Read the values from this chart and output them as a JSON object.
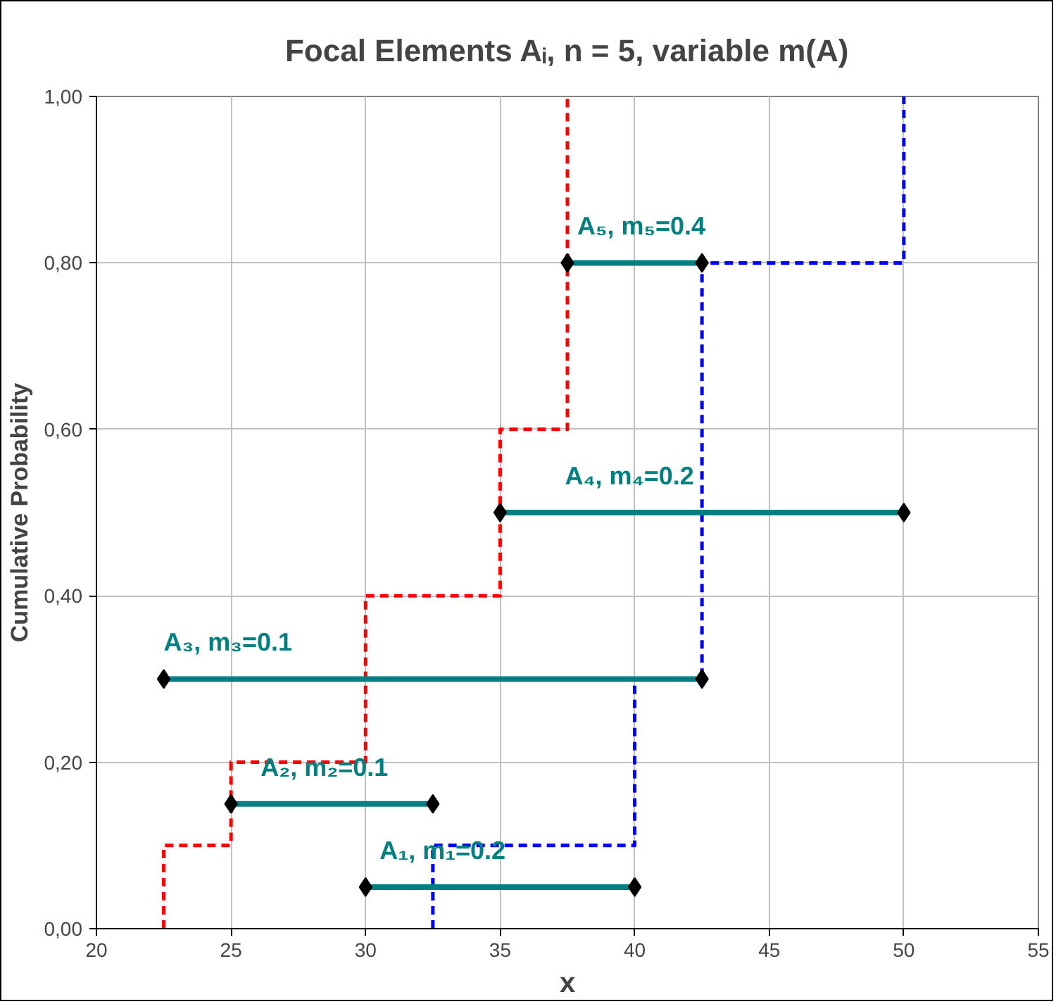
{
  "chart_data": {
    "type": "line",
    "title": "Focal Elements Aᵢ, n = 5, variable m(A)",
    "xlabel": "x",
    "ylabel": "Cumulative Probability",
    "xlim": [
      20,
      55
    ],
    "xticks": [
      20,
      25,
      30,
      35,
      40,
      45,
      50,
      55
    ],
    "ylim": [
      0,
      1
    ],
    "yticks": [
      {
        "value": 0,
        "label": "0,00"
      },
      {
        "value": 0.2,
        "label": "0,20"
      },
      {
        "value": 0.4,
        "label": "0,40"
      },
      {
        "value": 0.6,
        "label": "0,60"
      },
      {
        "value": 0.8,
        "label": "0,80"
      },
      {
        "value": 1,
        "label": "1,00"
      }
    ],
    "grid": true,
    "series": [
      {
        "x": [
          30,
          40
        ],
        "values": [
          0.05,
          0.05
        ],
        "color": "#008080",
        "marker": "diamond",
        "line_style": "solid"
      },
      {
        "x": [
          25,
          32.5
        ],
        "values": [
          0.15,
          0.15
        ],
        "color": "#008080",
        "marker": "diamond",
        "line_style": "solid"
      },
      {
        "x": [
          22.5,
          42.5
        ],
        "values": [
          0.3,
          0.3
        ],
        "color": "#008080",
        "marker": "diamond",
        "line_style": "solid"
      },
      {
        "x": [
          35,
          50
        ],
        "values": [
          0.5,
          0.5
        ],
        "color": "#008080",
        "marker": "diamond",
        "line_style": "solid"
      },
      {
        "x": [
          37.5,
          42.5
        ],
        "values": [
          0.8,
          0.8
        ],
        "color": "#008080",
        "marker": "diamond",
        "line_style": "solid"
      },
      {
        "x": [
          22.5,
          22.5,
          25,
          25,
          30,
          30,
          35,
          35,
          37.5,
          37.5
        ],
        "values": [
          0,
          0.1,
          0.1,
          0.2,
          0.2,
          0.4,
          0.4,
          0.6,
          0.6,
          1.0
        ],
        "color": "#ff0000",
        "marker": "none",
        "line_style": "dashed"
      },
      {
        "x": [
          32.5,
          32.5,
          40,
          40,
          42.5,
          42.5,
          50,
          50
        ],
        "values": [
          0,
          0.1,
          0.1,
          0.3,
          0.3,
          0.8,
          0.8,
          1.0
        ],
        "color": "#0000ff",
        "marker": "none",
        "line_style": "dashed"
      }
    ],
    "annotations": [
      {
        "text": "A₁, m₁=0.2",
        "x": 30,
        "y": 0.05
      },
      {
        "text": "A₂, m₂=0.1",
        "x": 25,
        "y": 0.15
      },
      {
        "text": "A₃, m₃=0.1",
        "x": 22.5,
        "y": 0.3
      },
      {
        "text": "A₄, m₄=0.2",
        "x": 35,
        "y": 0.5
      },
      {
        "text": "A₅, m₅=0.4",
        "x": 37.5,
        "y": 0.8
      }
    ]
  }
}
